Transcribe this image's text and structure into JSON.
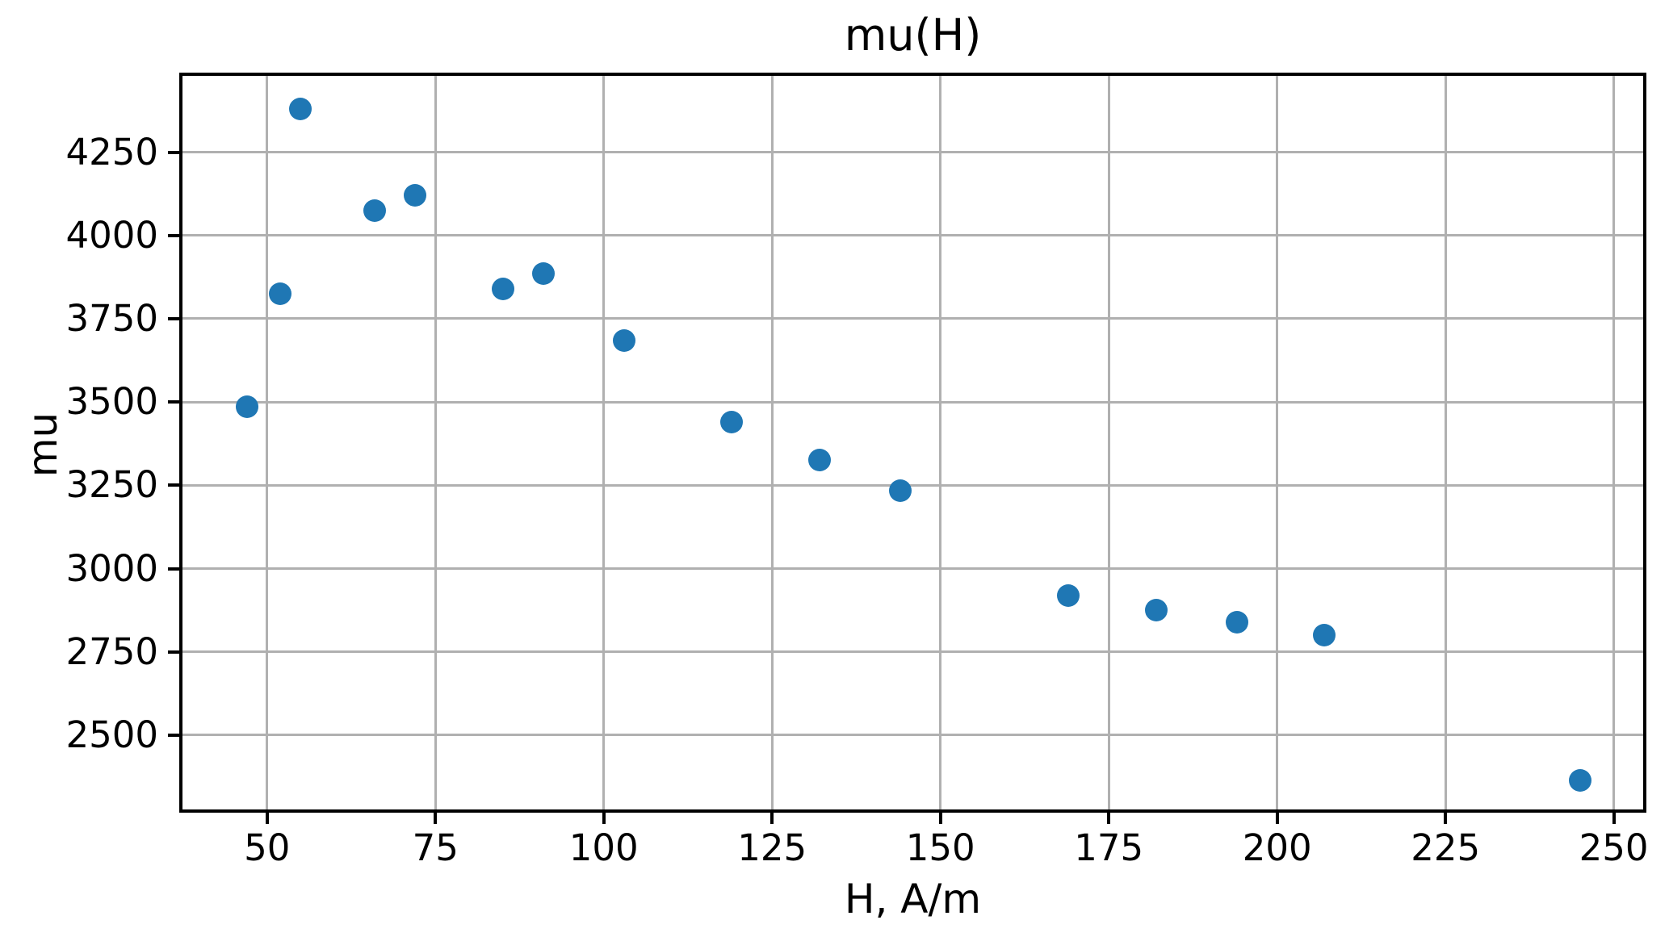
{
  "chart_data": {
    "type": "scatter",
    "title": "mu(H)",
    "xlabel": "H, A/m",
    "ylabel": "mu",
    "x": [
      47,
      52,
      55,
      66,
      72,
      85,
      91,
      103,
      119,
      132,
      144,
      169,
      182,
      194,
      207,
      245
    ],
    "y": [
      3485,
      3825,
      4380,
      4075,
      4120,
      3840,
      3885,
      3685,
      3440,
      3325,
      3235,
      2920,
      2875,
      2840,
      2800,
      2365
    ],
    "xlim": [
      37.2,
      254.6
    ],
    "ylim": [
      2272,
      4484
    ],
    "xticks": [
      50,
      75,
      100,
      125,
      150,
      175,
      200,
      225,
      250
    ],
    "yticks": [
      2500,
      2750,
      3000,
      3250,
      3500,
      3750,
      4000,
      4250
    ],
    "grid": true,
    "legend": null,
    "marker_color": "#1f77b4",
    "grid_color": "#b0b0b0",
    "spine_color": "#000000",
    "text_color": "#000000",
    "marker_size_px": 28
  }
}
